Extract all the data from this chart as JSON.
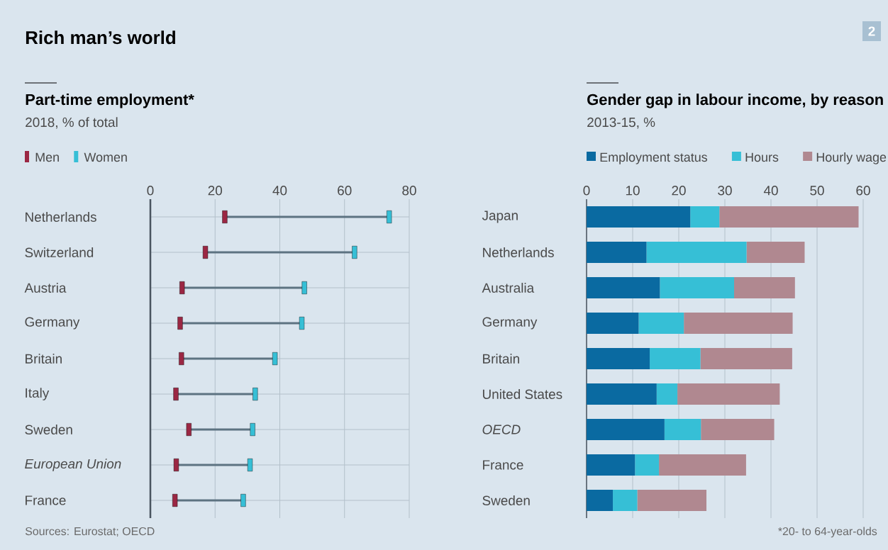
{
  "chart_data": [
    {
      "type": "scatter",
      "orientation": "horizontal",
      "title": "Part-time employment*",
      "subtitle": "2018, % of total",
      "annotations": [
        "Rich man’s world",
        "Sources: Eurostat; OECD"
      ],
      "categories": [
        "Netherlands",
        "Switzerland",
        "Austria",
        "Germany",
        "Britain",
        "Italy",
        "Sweden",
        "*European Union*",
        "France"
      ],
      "series": [
        {
          "name": "Men",
          "color": "#9b2743",
          "values": [
            23.0,
            17.0,
            9.8,
            9.2,
            9.6,
            7.9,
            11.9,
            8.0,
            7.6
          ]
        },
        {
          "name": "Women",
          "color": "#36bfd6",
          "values": [
            73.8,
            63.1,
            47.6,
            46.8,
            38.5,
            32.4,
            31.6,
            30.8,
            28.7
          ]
        }
      ],
      "xlim": [
        0,
        80
      ],
      "xticks": [
        0,
        20,
        40,
        60,
        80
      ],
      "grid": true,
      "legend": "top left"
    },
    {
      "type": "bar",
      "orientation": "horizontal",
      "stacked": true,
      "title": "Gender gap in labour income, by reason",
      "subtitle": "2013-15, %",
      "annotations": [
        "2",
        "*20- to 64-year-olds"
      ],
      "categories": [
        "Japan",
        "Netherlands",
        "Australia",
        "Germany",
        "Britain",
        "United States",
        "*OECD*",
        "France",
        "Sweden"
      ],
      "series": [
        {
          "name": "Employment status",
          "color": "#0a6aa1",
          "values": [
            22.5,
            13.0,
            15.9,
            11.3,
            13.7,
            15.2,
            16.9,
            10.5,
            5.7
          ]
        },
        {
          "name": "Hours",
          "color": "#36bfd6",
          "values": [
            6.3,
            21.7,
            16.1,
            9.8,
            11.0,
            4.5,
            7.9,
            5.2,
            5.3
          ]
        },
        {
          "name": "Hourly wage",
          "color": "#b08890",
          "values": [
            30.2,
            12.6,
            13.2,
            23.6,
            19.9,
            22.2,
            15.9,
            18.9,
            15.0
          ]
        }
      ],
      "xlim": [
        0,
        60
      ],
      "xticks": [
        0,
        10,
        20,
        30,
        40,
        50,
        60
      ],
      "grid": "x",
      "legend": "top left"
    }
  ]
}
